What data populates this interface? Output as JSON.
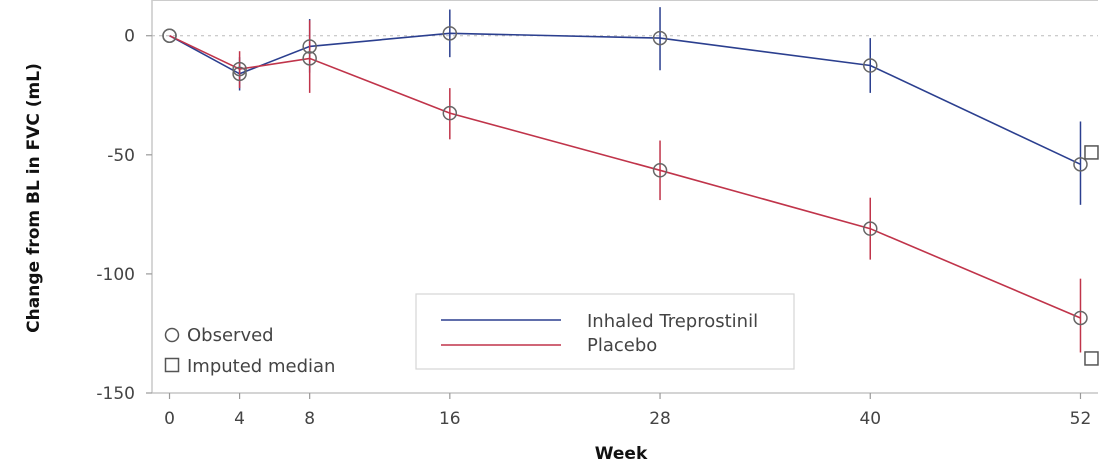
{
  "chart_data": {
    "type": "line",
    "xlabel": "Week",
    "ylabel": "Change from BL in FVC (mL)",
    "xlim": [
      -1,
      53
    ],
    "ylim": [
      -150,
      15
    ],
    "xticks": [
      0,
      4,
      8,
      16,
      28,
      40,
      52
    ],
    "yticks": [
      0,
      -50,
      -100,
      -150
    ],
    "reference_line_y": 0,
    "series": [
      {
        "name": "Inhaled Treprostinil",
        "color": "#2b3f8f",
        "x": [
          0,
          4,
          8,
          16,
          28,
          40,
          52
        ],
        "y": [
          0,
          -16,
          -4.5,
          1,
          -1,
          -12.5,
          -54
        ],
        "err_low": [
          0,
          -23,
          -15.5,
          -9,
          -14.5,
          -24,
          -71
        ],
        "err_high": [
          0,
          -9,
          7,
          11,
          12,
          -1,
          -36
        ],
        "imputed_median": [
          {
            "x": 52,
            "y": -49
          }
        ]
      },
      {
        "name": "Placebo",
        "color": "#c0344a",
        "x": [
          0,
          4,
          8,
          16,
          28,
          40,
          52
        ],
        "y": [
          0,
          -14,
          -9.5,
          -32.5,
          -56.5,
          -81,
          -118.5
        ],
        "err_low": [
          0,
          -22,
          -24,
          -43.5,
          -69,
          -94,
          -133
        ],
        "err_high": [
          0,
          -6.5,
          6.5,
          -22,
          -44,
          -68,
          -102
        ],
        "imputed_median": [
          {
            "x": 52,
            "y": -135.5
          }
        ]
      }
    ],
    "marker_legend": [
      "Observed",
      "Imputed median"
    ],
    "legend_position": "bottom-center"
  }
}
